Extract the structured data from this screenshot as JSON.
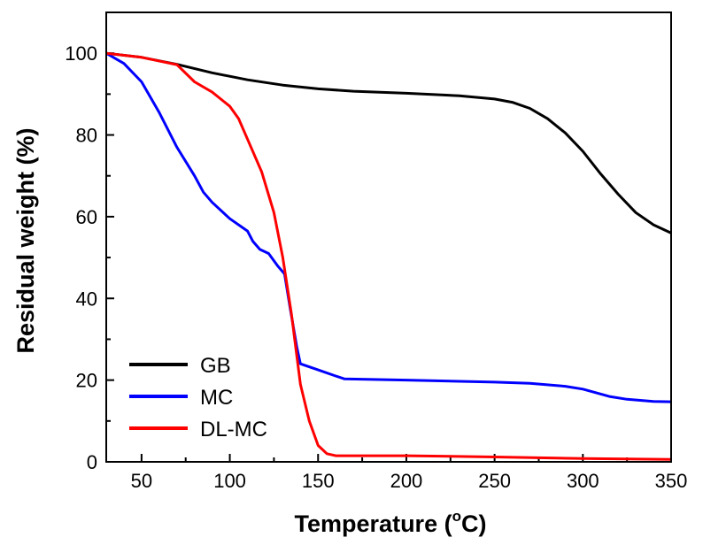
{
  "chart_data": {
    "type": "line",
    "title": "",
    "xlabel": "Temperature (",
    "xlabel_sup": "o",
    "xlabel_suffix": "C)",
    "ylabel": "Residual weight (%)",
    "xlim": [
      30,
      350
    ],
    "ylim": [
      0,
      110
    ],
    "xticks": [
      50,
      100,
      150,
      200,
      250,
      300,
      350
    ],
    "yticks": [
      0,
      20,
      40,
      60,
      80,
      100
    ],
    "legend_position": "bottom-left",
    "series": [
      {
        "name": "GB",
        "color": "#000000",
        "points": [
          [
            30,
            100
          ],
          [
            50,
            99
          ],
          [
            70,
            97.3
          ],
          [
            90,
            95.2
          ],
          [
            110,
            93.5
          ],
          [
            130,
            92.2
          ],
          [
            150,
            91.3
          ],
          [
            170,
            90.7
          ],
          [
            200,
            90.2
          ],
          [
            230,
            89.6
          ],
          [
            250,
            88.8
          ],
          [
            260,
            88
          ],
          [
            270,
            86.5
          ],
          [
            280,
            84
          ],
          [
            290,
            80.5
          ],
          [
            300,
            76
          ],
          [
            310,
            70.5
          ],
          [
            320,
            65.5
          ],
          [
            330,
            61
          ],
          [
            340,
            58
          ],
          [
            350,
            56
          ]
        ]
      },
      {
        "name": "MC",
        "color": "#0000ff",
        "points": [
          [
            30,
            100
          ],
          [
            40,
            97.5
          ],
          [
            50,
            93
          ],
          [
            60,
            85.5
          ],
          [
            70,
            77
          ],
          [
            80,
            70
          ],
          [
            85,
            66
          ],
          [
            90,
            63.5
          ],
          [
            100,
            59.5
          ],
          [
            110,
            56.5
          ],
          [
            113,
            54
          ],
          [
            117,
            52
          ],
          [
            122,
            51
          ],
          [
            127,
            48
          ],
          [
            131,
            46
          ],
          [
            134,
            38
          ],
          [
            138,
            28
          ],
          [
            140,
            24
          ],
          [
            150,
            22.5
          ],
          [
            160,
            21
          ],
          [
            165,
            20.3
          ],
          [
            200,
            20
          ],
          [
            250,
            19.5
          ],
          [
            270,
            19.2
          ],
          [
            290,
            18.5
          ],
          [
            300,
            17.8
          ],
          [
            315,
            16
          ],
          [
            325,
            15.3
          ],
          [
            340,
            14.8
          ],
          [
            350,
            14.7
          ]
        ]
      },
      {
        "name": "DL-MC",
        "color": "#ff0000",
        "points": [
          [
            30,
            100
          ],
          [
            50,
            99
          ],
          [
            70,
            97.2
          ],
          [
            80,
            93
          ],
          [
            90,
            90.5
          ],
          [
            100,
            87
          ],
          [
            105,
            84
          ],
          [
            110,
            79
          ],
          [
            118,
            71
          ],
          [
            125,
            61
          ],
          [
            130,
            50
          ],
          [
            135,
            36
          ],
          [
            140,
            19
          ],
          [
            145,
            10
          ],
          [
            150,
            4
          ],
          [
            155,
            2
          ],
          [
            160,
            1.5
          ],
          [
            200,
            1.5
          ],
          [
            250,
            1.2
          ],
          [
            300,
            0.8
          ],
          [
            350,
            0.6
          ]
        ]
      }
    ]
  }
}
